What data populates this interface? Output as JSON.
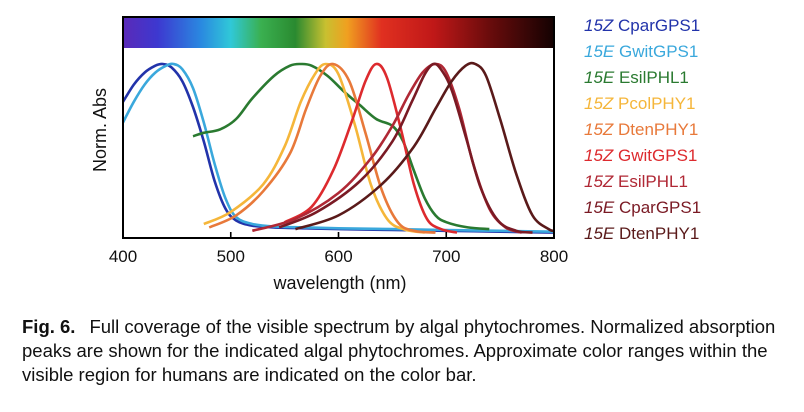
{
  "chart_data": {
    "type": "line",
    "title": "",
    "xlabel": "wavelength (nm)",
    "ylabel": "Norm. Abs",
    "xlim": [
      400,
      800
    ],
    "ylim": [
      0,
      1
    ],
    "x_ticks": [
      "400",
      "500",
      "600",
      "700",
      "800"
    ],
    "grid": false,
    "legend_position": "right",
    "colorbar": "visible spectrum (approx. 400–800 nm) across top of plot",
    "series": [
      {
        "isomer": "15Z",
        "name": "CparGPS1",
        "color": "#2233aa",
        "x": [
          400,
          410,
          420,
          430,
          437,
          445,
          455,
          465,
          475,
          485,
          495,
          505,
          520,
          540,
          570,
          600,
          650,
          700,
          750,
          800
        ],
        "y": [
          0.78,
          0.88,
          0.95,
          0.99,
          1.0,
          0.98,
          0.9,
          0.75,
          0.55,
          0.32,
          0.16,
          0.09,
          0.06,
          0.05,
          0.045,
          0.04,
          0.035,
          0.03,
          0.025,
          0.02
        ]
      },
      {
        "isomer": "15E",
        "name": "GwitGPS1",
        "color": "#3aa8dc",
        "x": [
          400,
          410,
          420,
          430,
          440,
          447,
          455,
          465,
          475,
          485,
          495,
          505,
          520,
          540,
          570,
          600,
          650,
          700,
          750,
          800
        ],
        "y": [
          0.66,
          0.78,
          0.88,
          0.95,
          0.99,
          1.0,
          0.97,
          0.86,
          0.66,
          0.42,
          0.22,
          0.11,
          0.07,
          0.055,
          0.05,
          0.045,
          0.04,
          0.035,
          0.03,
          0.025
        ]
      },
      {
        "isomer": "15E",
        "name": "EsilPHL1",
        "color": "#2a7a30",
        "x": [
          465,
          475,
          490,
          505,
          520,
          540,
          555,
          565,
          575,
          590,
          605,
          620,
          635,
          650,
          660,
          670,
          680,
          690,
          700,
          720,
          740
        ],
        "y": [
          0.58,
          0.6,
          0.62,
          0.68,
          0.8,
          0.93,
          0.99,
          1.0,
          0.99,
          0.93,
          0.84,
          0.76,
          0.68,
          0.64,
          0.55,
          0.38,
          0.22,
          0.12,
          0.08,
          0.05,
          0.04
        ]
      },
      {
        "isomer": "15Z",
        "name": "PcolPHY1",
        "color": "#f5b63a",
        "x": [
          475,
          500,
          530,
          550,
          565,
          578,
          588,
          600,
          615,
          630,
          645,
          660,
          680
        ],
        "y": [
          0.07,
          0.14,
          0.3,
          0.52,
          0.78,
          0.94,
          1.0,
          0.94,
          0.65,
          0.3,
          0.1,
          0.04,
          0.02
        ]
      },
      {
        "isomer": "15Z",
        "name": "DtenPHY1",
        "color": "#e8793a",
        "x": [
          480,
          505,
          530,
          555,
          570,
          583,
          595,
          610,
          625,
          640,
          655,
          670,
          690
        ],
        "y": [
          0.05,
          0.12,
          0.26,
          0.48,
          0.74,
          0.93,
          1.0,
          0.9,
          0.6,
          0.27,
          0.08,
          0.03,
          0.02
        ]
      },
      {
        "isomer": "15Z",
        "name": "GwitGPS1",
        "color": "#dd2a2e",
        "x": [
          550,
          575,
          595,
          612,
          625,
          635,
          645,
          658,
          670,
          682,
          695,
          710
        ],
        "y": [
          0.08,
          0.17,
          0.38,
          0.66,
          0.9,
          1.0,
          0.92,
          0.62,
          0.3,
          0.1,
          0.04,
          0.02
        ]
      },
      {
        "isomer": "15Z",
        "name": "EsilPHL1",
        "color": "#b02835",
        "x": [
          520,
          560,
          600,
          630,
          650,
          665,
          678,
          690,
          700,
          712,
          725,
          740,
          755,
          770
        ],
        "y": [
          0.03,
          0.1,
          0.25,
          0.45,
          0.64,
          0.82,
          0.95,
          1.0,
          0.95,
          0.74,
          0.42,
          0.16,
          0.05,
          0.02
        ]
      },
      {
        "isomer": "15E",
        "name": "CparGPS1",
        "color": "#7a1a24",
        "x": [
          545,
          580,
          620,
          650,
          668,
          680,
          688,
          695,
          705,
          718,
          732,
          748,
          765,
          780
        ],
        "y": [
          0.05,
          0.14,
          0.32,
          0.55,
          0.78,
          0.94,
          1.0,
          0.97,
          0.85,
          0.58,
          0.28,
          0.09,
          0.03,
          0.02
        ]
      },
      {
        "isomer": "15E",
        "name": "DtenPHY1",
        "color": "#5a1a1a",
        "x": [
          560,
          600,
          640,
          670,
          690,
          705,
          718,
          727,
          737,
          750,
          765,
          780,
          795,
          800
        ],
        "y": [
          0.04,
          0.12,
          0.3,
          0.52,
          0.74,
          0.9,
          0.99,
          1.0,
          0.93,
          0.68,
          0.36,
          0.12,
          0.04,
          0.03
        ]
      }
    ]
  },
  "caption": {
    "label": "Fig. 6.",
    "text": "Full coverage of the visible spectrum by algal phytochromes. Normalized absorption peaks are shown for the indicated algal phytochromes. Approximate color ranges within the visible region for humans are indicated on the color bar."
  }
}
